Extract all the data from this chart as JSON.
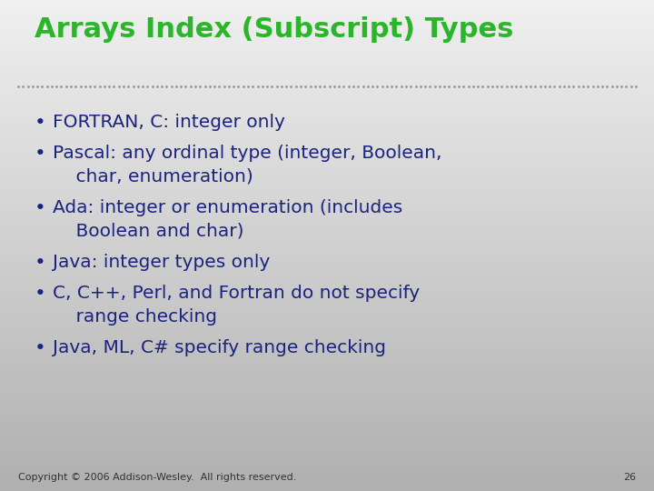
{
  "title": "Arrays Index (Subscript) Types",
  "title_color": "#2ab52a",
  "title_fontsize": 22,
  "bullet_color": "#1a237e",
  "bullet_fontsize": 14.5,
  "background_top": "#f0f0f0",
  "background_bottom": "#b0b0b0",
  "separator_color": "#909090",
  "footer_text": "Copyright © 2006 Addison-Wesley.  All rights reserved.",
  "footer_page": "26",
  "footer_fontsize": 8,
  "footer_color": "#333333",
  "bullets": [
    [
      "FORTRAN, C: integer only"
    ],
    [
      "Pascal: any ordinal type (integer, Boolean,",
      "    char, enumeration)"
    ],
    [
      "Ada: integer or enumeration (includes",
      "    Boolean and char)"
    ],
    [
      "Java: integer types only"
    ],
    [
      "C, C++, Perl, and Fortran do not specify",
      "    range checking"
    ],
    [
      "Java, ML, C# specify range checking"
    ]
  ]
}
